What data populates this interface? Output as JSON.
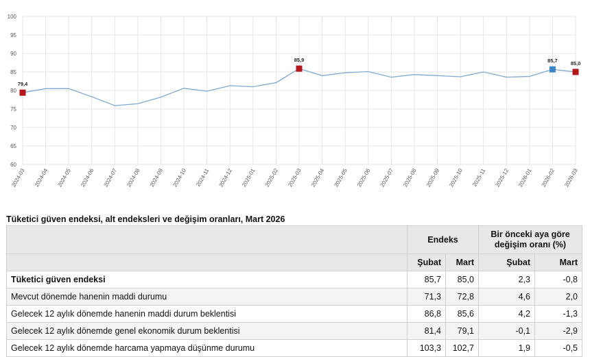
{
  "chart_data": {
    "type": "line",
    "x": [
      "2024-03",
      "2024-04",
      "2024-05",
      "2024-06",
      "2024-07",
      "2024-08",
      "2024-09",
      "2024-10",
      "2024-11",
      "2024-12",
      "2025-01",
      "2025-02",
      "2025-03",
      "2025-04",
      "2025-05",
      "2025-06",
      "2025-07",
      "2025-08",
      "2025-09",
      "2025-10",
      "2025-11",
      "2025-12",
      "2026-01",
      "2026-02",
      "2026-03"
    ],
    "series": [
      {
        "values": [
          79.4,
          80.5,
          80.5,
          78.3,
          75.9,
          76.4,
          78.2,
          80.6,
          79.8,
          81.3,
          81.0,
          82.1,
          85.9,
          84.0,
          84.8,
          85.1,
          83.6,
          84.3,
          84.0,
          83.7,
          85.0,
          83.6,
          83.8,
          85.7,
          85.0
        ]
      }
    ],
    "ylim": [
      60,
      100
    ],
    "yticks": [
      60,
      65,
      70,
      75,
      80,
      85,
      90,
      95,
      100
    ],
    "grid": true,
    "line_color": "#7fa9cf",
    "markers": [
      {
        "index": 0,
        "label": "79,4",
        "color": "#b5161c"
      },
      {
        "index": 12,
        "label": "85,9",
        "color": "#b5161c"
      },
      {
        "index": 23,
        "label": "85,7",
        "color": "#3f86c6"
      },
      {
        "index": 24,
        "label": "85,0",
        "color": "#b5161c"
      }
    ]
  },
  "table": {
    "title": "Tüketici güven endeksi, alt endeksleri ve değişim oranları, Mart 2026",
    "group_headers": {
      "index": "Endeks",
      "change": "Bir önceki aya göre değişim oranı (%)"
    },
    "sub_headers": [
      "Şubat",
      "Mart",
      "Şubat",
      "Mart"
    ],
    "rows": [
      {
        "label": "Tüketici güven endeksi",
        "values": [
          "85,7",
          "85,0",
          "2,3",
          "-0,8"
        ],
        "bold": true
      },
      {
        "label": "Mevcut dönemde hanenin maddi durumu",
        "values": [
          "71,3",
          "72,8",
          "4,6",
          "2,0"
        ]
      },
      {
        "label": "Gelecek 12 aylık dönemde hanenin maddi durum beklentisi",
        "values": [
          "86,8",
          "85,6",
          "4,2",
          "-1,3"
        ]
      },
      {
        "label": "Gelecek 12 aylık dönemde genel ekonomik durum beklentisi",
        "values": [
          "81,4",
          "79,1",
          "-0,1",
          "-2,9"
        ]
      },
      {
        "label": "Gelecek 12 aylık dönemde harcama yapmaya düşünme durumu",
        "values": [
          "103,3",
          "102,7",
          "1,9",
          "-0,5"
        ]
      }
    ]
  }
}
